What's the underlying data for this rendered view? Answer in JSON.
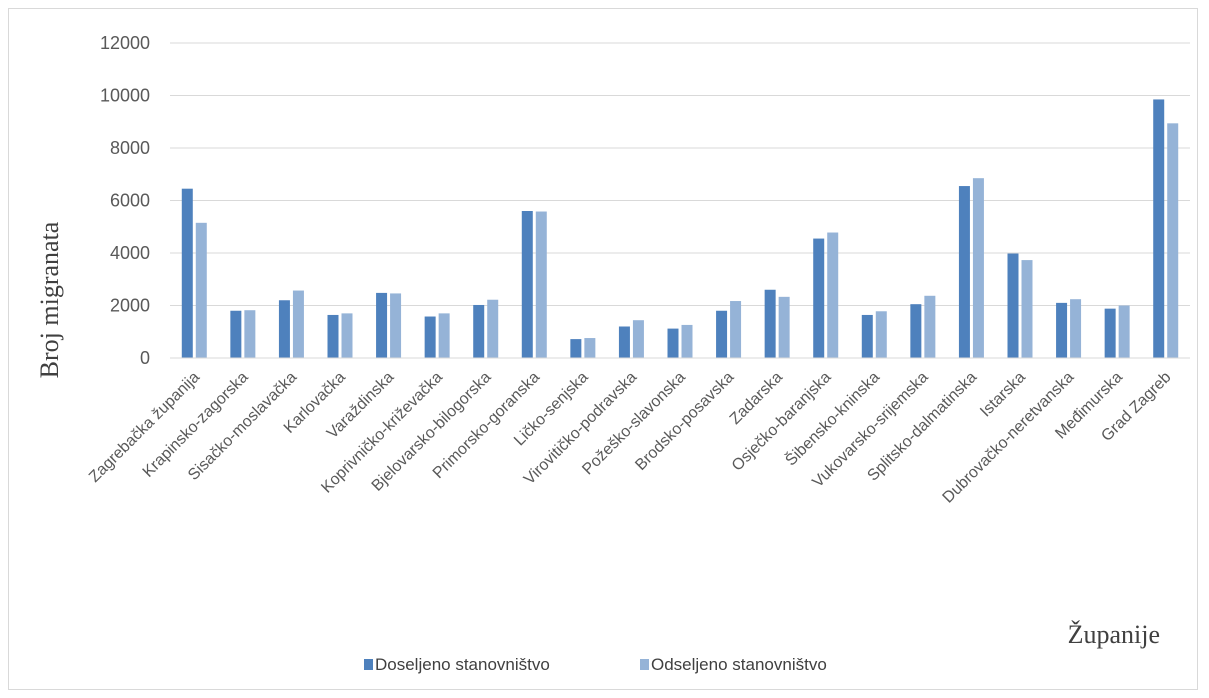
{
  "chart_data": {
    "type": "bar",
    "title": "",
    "ylabel": "Broj migranata",
    "xlabel": "Županije",
    "ylim": [
      0,
      12000
    ],
    "yticks": [
      0,
      2000,
      4000,
      6000,
      8000,
      10000,
      12000
    ],
    "grid": true,
    "legend_position": "bottom",
    "categories": [
      "Zagrebačka županija",
      "Krapinsko-zagorska",
      "Sisačko-moslavačka",
      "Karlovačka",
      "Varaždinska",
      "Koprivničko-križevačka",
      "Bjelovarsko-bilogorska",
      "Primorsko-goranska",
      "Ličko-senjska",
      "Virovitičko-podravska",
      "Požeško-slavonska",
      "Brodsko-posavska",
      "Zadarska",
      "Osječko-baranjska",
      "Šibensko-kninska",
      "Vukovarsko-srijemska",
      "Splitsko-dalmatinska",
      "Istarska",
      "Dubrovačko-neretvanska",
      "Međimurska",
      "Grad Zagreb"
    ],
    "series": [
      {
        "name": "Doseljeno stanovništvo",
        "color": "#4e81bd",
        "values": [
          6450,
          1800,
          2200,
          1640,
          2480,
          1580,
          2020,
          5600,
          720,
          1200,
          1120,
          1800,
          2600,
          4550,
          1640,
          2050,
          6550,
          3980,
          2100,
          1880,
          9850
        ]
      },
      {
        "name": "Odseljeno stanovništvo",
        "color": "#95b3d7",
        "values": [
          5150,
          1820,
          2570,
          1700,
          2460,
          1700,
          2220,
          5580,
          760,
          1440,
          1260,
          2170,
          2330,
          4780,
          1780,
          2370,
          6850,
          3730,
          2240,
          2000,
          8940
        ]
      }
    ]
  }
}
